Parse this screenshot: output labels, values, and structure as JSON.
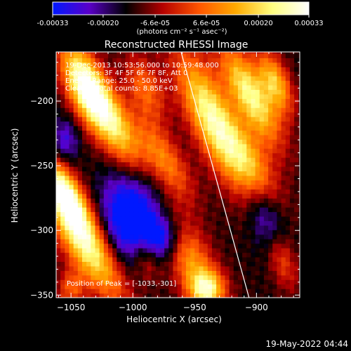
{
  "chart_data": {
    "type": "heatmap",
    "title": "Reconstructed RHESSI Image",
    "xlabel": "Heliocentric X (arcsec)",
    "ylabel": "Heliocentric Y (arcsec)",
    "xlim": [
      -1062,
      -865
    ],
    "ylim": [
      -352,
      -162
    ],
    "x_ticks": [
      -1050,
      -1000,
      -950,
      -900
    ],
    "x_tick_labels": [
      "−1050",
      "−1000",
      "−950",
      "−900"
    ],
    "y_ticks": [
      -350,
      -300,
      -250,
      -200
    ],
    "y_tick_labels": [
      "−350",
      "−300",
      "−250",
      "−200"
    ],
    "colorbar": {
      "min": -0.00033,
      "max": 0.00033,
      "ticks": [
        -0.00033,
        -0.0002,
        -6.6e-05,
        6.6e-05,
        0.0002,
        0.00033
      ],
      "tick_labels": [
        "-0.00033",
        "-0.00020",
        "-6.6e-05",
        "6.6e-05",
        "0.00020",
        "0.00033"
      ],
      "unit_label": "(photons cm⁻² s⁻¹ asec⁻²)",
      "colors": [
        "#0018ff",
        "#5a00c8",
        "#000000",
        "#b40000",
        "#ff5500",
        "#ffaa00",
        "#ffff80",
        "#ffffff"
      ]
    },
    "grid": false,
    "limb_line": {
      "x": [
        -961,
        -906
      ],
      "y": [
        -162,
        -352
      ],
      "color": "#ffffff"
    },
    "annotations": {
      "time_range": "19-Dec-2013 10:53:56.000 to 10:59:48.000",
      "detectors": "Detectors: 3F 4F 5F 6F 7F 8F, Att 0",
      "energy": "Energy Range: 25.0 - 50.0 keV",
      "method": "Clean     Total counts: 8.85E+03",
      "peak": "Position of Peak = [-1033,-301]"
    }
  },
  "footer": {
    "timestamp": "19-May-2022 04:44"
  }
}
